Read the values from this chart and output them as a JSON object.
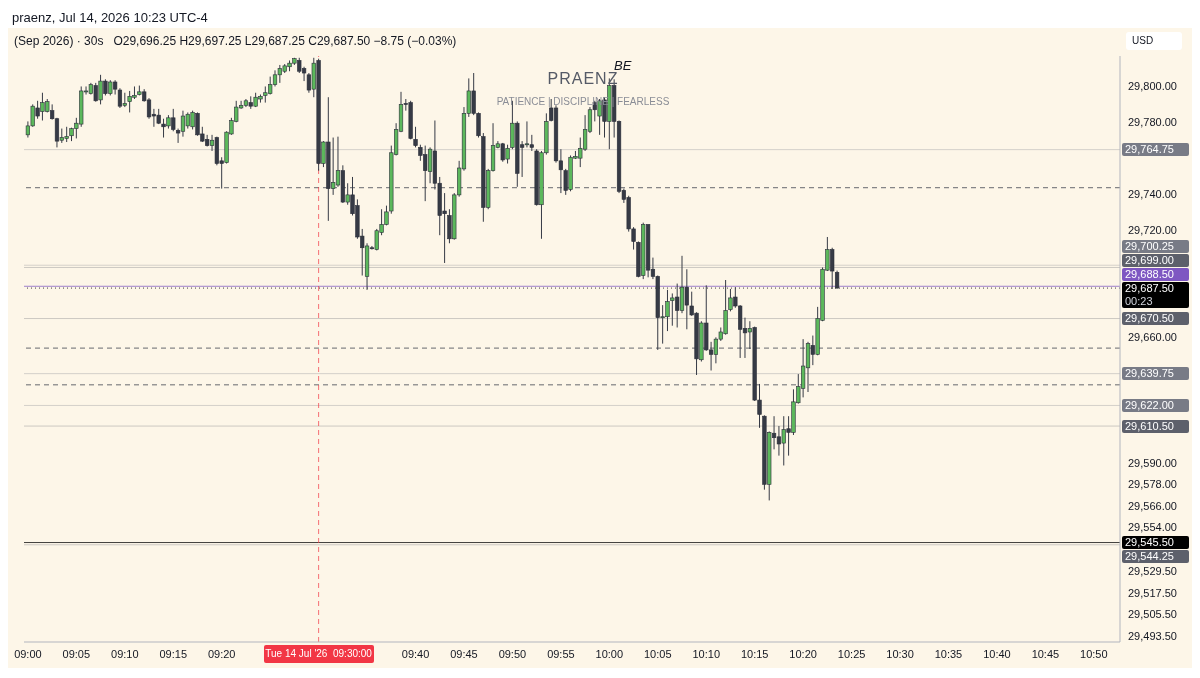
{
  "chart_data": {
    "type": "candlestick",
    "title": "praenz, Jul 14, 2026 10:23 UTC-4",
    "subtitle": "(Sep 2026) · 30s",
    "ylabel": "USD",
    "annotations": [
      "O29,696.25 H29,697.25 L29,687.25 C29,687.50 −8.75 (−0.03%)",
      "BE",
      "PRAENZ",
      "PATIENCE | DISCIPLINE | FEARLESS",
      "00:23"
    ],
    "x": [
      9.0,
      9.0083,
      9.0167,
      9.025,
      9.0333,
      9.0417,
      9.05,
      9.0583,
      9.0667,
      9.075,
      9.0833,
      9.0917,
      9.1,
      9.1083,
      9.1167,
      9.125,
      9.1333,
      9.1417,
      9.15,
      9.1583,
      9.1667,
      9.175,
      9.1833,
      9.1917,
      9.2,
      9.2083,
      9.2167,
      9.225,
      9.2333,
      9.2417,
      9.25,
      9.2583,
      9.2667,
      9.275,
      9.2833,
      9.2917,
      9.3,
      9.3083,
      9.3167,
      9.325,
      9.3333,
      9.3417,
      9.35,
      9.3583,
      9.3667,
      9.375,
      9.3833,
      9.3917,
      9.4,
      9.4083,
      9.4167,
      9.425,
      9.4333,
      9.4417,
      9.45,
      9.4583,
      9.4667,
      9.475,
      9.4833,
      9.4917,
      9.5,
      9.5083,
      9.5167,
      9.525,
      9.5333,
      9.5417,
      9.55,
      9.5583,
      9.5667,
      9.575,
      9.5833,
      9.5917,
      9.6,
      9.6083,
      9.6167,
      9.625,
      9.6333,
      9.6417,
      9.65,
      9.6583,
      9.6667,
      9.675,
      9.6833,
      9.6917,
      9.7,
      9.7083,
      9.7167,
      9.725,
      9.7333,
      9.7417,
      9.75,
      9.7583,
      9.7667,
      9.775,
      9.7833,
      9.7917,
      9.8,
      9.8083,
      9.8167,
      9.825,
      9.8333,
      9.8417,
      9.85,
      9.8583,
      9.8667,
      9.875,
      9.8833,
      9.8917,
      9.9,
      9.9083,
      9.9167,
      9.925,
      9.9333,
      9.9417,
      9.95,
      9.9583,
      9.9667,
      9.975,
      9.9833,
      9.9917,
      10.0,
      10.0083,
      10.0167,
      10.025,
      10.0333,
      10.0417,
      10.05,
      10.0583,
      10.0667,
      10.075,
      10.0833,
      10.0917,
      10.1,
      10.1083,
      10.1167,
      10.125,
      10.1333,
      10.1417,
      10.15,
      10.1583,
      10.1667,
      10.175,
      10.1833,
      10.1917,
      10.2,
      10.2083,
      10.2167,
      10.225,
      10.2333,
      10.2417,
      10.25,
      10.2583,
      10.2667,
      10.275,
      10.2833,
      10.2917,
      10.3,
      10.3083,
      10.3167,
      10.325,
      10.3333,
      10.3417,
      10.35,
      10.3583,
      10.3667,
      10.375,
      10.3833,
      10.3917
    ],
    "ohlc": [
      [
        29773,
        29780.5,
        29771.5,
        29778
      ],
      [
        29778,
        29790,
        29777.5,
        29789
      ],
      [
        29788,
        29792,
        29782,
        29783.5
      ],
      [
        29786,
        29796.5,
        29781,
        29791
      ],
      [
        29786,
        29793,
        29785.5,
        29791.5
      ],
      [
        29786.5,
        29790,
        29781.5,
        29782
      ],
      [
        29782,
        29782.5,
        29766,
        29769.5
      ],
      [
        29770,
        29776.5,
        29768.5,
        29771.5
      ],
      [
        29771,
        29777.5,
        29769,
        29772
      ],
      [
        29772.5,
        29777,
        29769.5,
        29776.5
      ],
      [
        29776.5,
        29782.5,
        29771,
        29779.5
      ],
      [
        29779,
        29800,
        29777.5,
        29797.5
      ],
      [
        29797,
        29800,
        29795.5,
        29797.5
      ],
      [
        29796,
        29802,
        29795.5,
        29801
      ],
      [
        29800.5,
        29802,
        29791.5,
        29792
      ],
      [
        29792.5,
        29806.5,
        29790,
        29803
      ],
      [
        29803,
        29804,
        29795,
        29796
      ],
      [
        29796,
        29803.5,
        29795,
        29802.5
      ],
      [
        29802.5,
        29803.5,
        29795.5,
        29798.5
      ],
      [
        29798,
        29799,
        29788,
        29789
      ],
      [
        29789.5,
        29796.5,
        29788.5,
        29790.5
      ],
      [
        29791.5,
        29797.5,
        29785.5,
        29794.5
      ],
      [
        29794,
        29800,
        29793,
        29795
      ],
      [
        29795.5,
        29800.5,
        29795,
        29797
      ],
      [
        29797,
        29798.5,
        29791.5,
        29792
      ],
      [
        29792.5,
        29793.5,
        29782,
        29783
      ],
      [
        29784.5,
        29787.5,
        29777.5,
        29783.5
      ],
      [
        29784,
        29787.5,
        29779,
        29779.5
      ],
      [
        29779,
        29782,
        29771.5,
        29777.5
      ],
      [
        29778,
        29784,
        29776.5,
        29782.5
      ],
      [
        29782.5,
        29787.5,
        29775,
        29776
      ],
      [
        29775.5,
        29776.5,
        29768.5,
        29774
      ],
      [
        29775,
        29786.5,
        29772,
        29783.5
      ],
      [
        29778,
        29785.5,
        29776.5,
        29784.5
      ],
      [
        29777.5,
        29786.5,
        29776,
        29785.5
      ],
      [
        29785,
        29785.5,
        29772.5,
        29773
      ],
      [
        29773.5,
        29777.5,
        29769,
        29769.5
      ],
      [
        29770.5,
        29773,
        29766.5,
        29767
      ],
      [
        29767,
        29773,
        29764,
        29770
      ],
      [
        29771.5,
        29772,
        29756,
        29757
      ],
      [
        29758.5,
        29760.5,
        29743,
        29757
      ],
      [
        29757.5,
        29775,
        29757,
        29774.5
      ],
      [
        29773.5,
        29782.5,
        29773,
        29781
      ],
      [
        29780.5,
        29792,
        29780,
        29788.5
      ],
      [
        29788,
        29792,
        29787.5,
        29789.5
      ],
      [
        29789.5,
        29793,
        29788.5,
        29792
      ],
      [
        29791,
        29794.5,
        29787.5,
        29789
      ],
      [
        29789,
        29796.5,
        29788.5,
        29794
      ],
      [
        29793,
        29795.5,
        29791,
        29794.5
      ],
      [
        29795,
        29800,
        29791,
        29796.5
      ],
      [
        29796,
        29805.5,
        29795.5,
        29801
      ],
      [
        29801,
        29809,
        29800,
        29806.5
      ],
      [
        29806.5,
        29812,
        29802,
        29810
      ],
      [
        29808.5,
        29812.5,
        29807.5,
        29811.5
      ],
      [
        29811,
        29814.5,
        29808.5,
        29813
      ],
      [
        29813,
        29816,
        29812,
        29815.5
      ],
      [
        29814.5,
        29816,
        29807.5,
        29808.5
      ],
      [
        29810,
        29811,
        29803,
        29807.5
      ],
      [
        29806.5,
        29807.5,
        29796.5,
        29798
      ],
      [
        29798.5,
        29816,
        29794,
        29813
      ],
      [
        29814.5,
        29815.5,
        29753,
        29757
      ],
      [
        29757,
        29769.5,
        29755,
        29769
      ],
      [
        29769,
        29794,
        29725,
        29743
      ],
      [
        29743,
        29771.5,
        29739.5,
        29746.5
      ],
      [
        29745,
        29772,
        29744,
        29753
      ],
      [
        29753,
        29756,
        29735,
        29735.5
      ],
      [
        29735.5,
        29746,
        29734,
        29739.5
      ],
      [
        29739.5,
        29749.5,
        29728,
        29729
      ],
      [
        29733.5,
        29737,
        29715,
        29716
      ],
      [
        29716.5,
        29720.5,
        29694.5,
        29710
      ],
      [
        29694,
        29712.5,
        29686.5,
        29711
      ],
      [
        29710,
        29711,
        29709,
        29709.5
      ],
      [
        29709,
        29720.5,
        29708.5,
        29719.5
      ],
      [
        29718.5,
        29731.5,
        29717,
        29723
      ],
      [
        29723,
        29733.5,
        29722.5,
        29730
      ],
      [
        29730.5,
        29767,
        29729,
        29763
      ],
      [
        29762,
        29779.5,
        29761.5,
        29776
      ],
      [
        29775,
        29797,
        29774.5,
        29790
      ],
      [
        29790.5,
        29793,
        29786.5,
        29790
      ],
      [
        29791,
        29792,
        29770.5,
        29771
      ],
      [
        29770.5,
        29777.5,
        29766,
        29767
      ],
      [
        29766,
        29767.5,
        29758.5,
        29761.5
      ],
      [
        29762,
        29767,
        29736,
        29753
      ],
      [
        29752.5,
        29766,
        29746,
        29765
      ],
      [
        29764,
        29781,
        29742.5,
        29746
      ],
      [
        29746,
        29749.5,
        29717,
        29728
      ],
      [
        29730.5,
        29740.5,
        29701.5,
        29729
      ],
      [
        29728,
        29731.5,
        29712.5,
        29715
      ],
      [
        29715,
        29740.5,
        29714.5,
        29739.5
      ],
      [
        29739.5,
        29758.5,
        29738.5,
        29754.5
      ],
      [
        29754,
        29788.5,
        29753,
        29785
      ],
      [
        29785,
        29804.5,
        29783,
        29797.5
      ],
      [
        29797.5,
        29807.5,
        29784,
        29785
      ],
      [
        29785,
        29785.5,
        29771.5,
        29772.5
      ],
      [
        29772,
        29774,
        29724.5,
        29732.5
      ],
      [
        29732.5,
        29754,
        29731.5,
        29753
      ],
      [
        29753,
        29779.5,
        29752.5,
        29767
      ],
      [
        29766,
        29769.5,
        29765.5,
        29768
      ],
      [
        29768,
        29768.5,
        29758,
        29759
      ],
      [
        29759.5,
        29767.5,
        29757,
        29765.5
      ],
      [
        29766,
        29792,
        29765,
        29779.5
      ],
      [
        29779.5,
        29780.5,
        29744,
        29751.5
      ],
      [
        29767.5,
        29769.5,
        29749.5,
        29766
      ],
      [
        29767.5,
        29780.5,
        29766,
        29768
      ],
      [
        29767.5,
        29773,
        29764,
        29766
      ],
      [
        29764,
        29765,
        29733.5,
        29734
      ],
      [
        29734,
        29764,
        29715,
        29763
      ],
      [
        29763,
        29785,
        29762,
        29780.5
      ],
      [
        29788,
        29793,
        29780.5,
        29781
      ],
      [
        29788,
        29789.5,
        29757.5,
        29758.5
      ],
      [
        29758.5,
        29765,
        29740.5,
        29753.5
      ],
      [
        29753,
        29754,
        29739.5,
        29742
      ],
      [
        29742.5,
        29761.5,
        29741.5,
        29760.5
      ],
      [
        29760,
        29764,
        29759.5,
        29761
      ],
      [
        29760,
        29771.5,
        29755,
        29765.5
      ],
      [
        29765,
        29784,
        29764,
        29776
      ],
      [
        29775,
        29788.5,
        29774,
        29787
      ],
      [
        29791,
        29792,
        29780.5,
        29787
      ],
      [
        29783.5,
        29793,
        29773,
        29792
      ],
      [
        29792.5,
        29794,
        29771.5,
        29780.5
      ],
      [
        29780.5,
        29804.5,
        29765,
        29800.5
      ],
      [
        29800.5,
        29804,
        29771.5,
        29780.5
      ],
      [
        29780.5,
        29781,
        29740.5,
        29741.5
      ],
      [
        29742,
        29743,
        29735,
        29737
      ],
      [
        29738,
        29739,
        29719,
        29720.5
      ],
      [
        29720.5,
        29721.5,
        29709,
        29713.5
      ],
      [
        29713,
        29713.5,
        29693.5,
        29694
      ],
      [
        29694.5,
        29724,
        29692.5,
        29723
      ],
      [
        29723,
        29723,
        29693.5,
        29697.5
      ],
      [
        29698,
        29704.5,
        29692.5,
        29694
      ],
      [
        29694,
        29694.5,
        29653,
        29671
      ],
      [
        29671,
        29678,
        29656.5,
        29671.5
      ],
      [
        29671.5,
        29686.5,
        29663.5,
        29680
      ],
      [
        29680.5,
        29684.5,
        29666.5,
        29682
      ],
      [
        29682.5,
        29690,
        29665.5,
        29675
      ],
      [
        29675,
        29705.5,
        29673.5,
        29688
      ],
      [
        29688,
        29698,
        29664.5,
        29678
      ],
      [
        29677.5,
        29685.5,
        29672,
        29672.5
      ],
      [
        29673.5,
        29674,
        29639,
        29648
      ],
      [
        29647.5,
        29669,
        29646.5,
        29668
      ],
      [
        29668,
        29689,
        29652.5,
        29653
      ],
      [
        29653,
        29657.5,
        29641.5,
        29650.5
      ],
      [
        29650.5,
        29660,
        29645.5,
        29659
      ],
      [
        29659,
        29665.5,
        29658,
        29663
      ],
      [
        29662,
        29692,
        29661.5,
        29675
      ],
      [
        29675.5,
        29687,
        29674.5,
        29682
      ],
      [
        29682.5,
        29688,
        29676.5,
        29677.5
      ],
      [
        29677.5,
        29678,
        29648.5,
        29664.5
      ],
      [
        29665,
        29671,
        29648.5,
        29662.5
      ],
      [
        29663,
        29669,
        29653.5,
        29665
      ],
      [
        29665.5,
        29666,
        29624.5,
        29625
      ],
      [
        29625,
        29634,
        29609.5,
        29617
      ],
      [
        29616,
        29616.5,
        29575,
        29578
      ],
      [
        29578,
        29607.5,
        29569,
        29607
      ],
      [
        29606.5,
        29616,
        29597.5,
        29604
      ],
      [
        29604.5,
        29610.5,
        29594,
        29600.5
      ],
      [
        29601,
        29616,
        29588.5,
        29608.5
      ],
      [
        29609,
        29616,
        29594,
        29607
      ],
      [
        29607,
        29631,
        29605.5,
        29624
      ],
      [
        29623.5,
        29639.5,
        29623,
        29632.5
      ],
      [
        29631.5,
        29659,
        29626.5,
        29644
      ],
      [
        29643,
        29657.5,
        29629.5,
        29656.5
      ],
      [
        29655.5,
        29661,
        29644.5,
        29650.5
      ],
      [
        29650.5,
        29677,
        29650,
        29670.5
      ],
      [
        29669.5,
        29699,
        29669,
        29698
      ],
      [
        29697.5,
        29716,
        29697,
        29709
      ],
      [
        29709,
        29710,
        29687,
        29697
      ],
      [
        29696.25,
        29697.25,
        29687.25,
        29687.5
      ]
    ],
    "xlim": [
      8.9933,
      10.8783
    ],
    "xticks": [
      {
        "value": 9.0,
        "label": "09:00"
      },
      {
        "value": 9.0833,
        "label": "09:05"
      },
      {
        "value": 9.1667,
        "label": "09:10"
      },
      {
        "value": 9.25,
        "label": "09:15"
      },
      {
        "value": 9.3333,
        "label": "09:20"
      },
      {
        "value": 9.6667,
        "label": "09:40"
      },
      {
        "value": 9.75,
        "label": "09:45"
      },
      {
        "value": 9.8333,
        "label": "09:50"
      },
      {
        "value": 9.9167,
        "label": "09:55"
      },
      {
        "value": 10.0,
        "label": "10:00"
      },
      {
        "value": 10.0833,
        "label": "10:05"
      },
      {
        "value": 10.1667,
        "label": "10:10"
      },
      {
        "value": 10.25,
        "label": "10:15"
      },
      {
        "value": 10.3333,
        "label": "10:20"
      },
      {
        "value": 10.4167,
        "label": "10:25"
      },
      {
        "value": 10.5,
        "label": "10:30"
      },
      {
        "value": 10.5833,
        "label": "10:35"
      },
      {
        "value": 10.6667,
        "label": "10:40"
      },
      {
        "value": 10.75,
        "label": "10:45"
      },
      {
        "value": 10.8333,
        "label": "10:50"
      }
    ],
    "ylim": [
      29490,
      29817
    ],
    "yticks": [
      {
        "value": 29800,
        "label": "29,800.00"
      },
      {
        "value": 29780,
        "label": "29,780.00"
      },
      {
        "value": 29740,
        "label": "29,740.00"
      },
      {
        "value": 29720,
        "label": "29,720.00"
      },
      {
        "value": 29660,
        "label": "29,660.00"
      },
      {
        "value": 29590,
        "label": "29,590.00"
      },
      {
        "value": 29578,
        "label": "29,578.00"
      },
      {
        "value": 29566,
        "label": "29,566.00"
      },
      {
        "value": 29554,
        "label": "29,554.00"
      },
      {
        "value": 29529.5,
        "label": "29,529.50"
      },
      {
        "value": 29517.5,
        "label": "29,517.50"
      },
      {
        "value": 29505.5,
        "label": "29,505.50"
      },
      {
        "value": 29493.5,
        "label": "29,493.50"
      }
    ],
    "ref_lines": [
      {
        "axis": "y",
        "value": 29764.75,
        "label": "29,764.75",
        "color": "#787b86"
      },
      {
        "axis": "y",
        "value": 29743.5,
        "color": "#363a45",
        "line_style": "dashed"
      },
      {
        "axis": "y",
        "value": 29700.25,
        "label": "29,700.25",
        "color": "#787b86"
      },
      {
        "axis": "y",
        "value": 29699,
        "label": "29,699.00",
        "color": "#5d606b"
      },
      {
        "axis": "y",
        "value": 29688.5,
        "label": "29,688.50",
        "color": "#7e57c2",
        "line_style": "solid"
      },
      {
        "axis": "y",
        "value": 29687.5,
        "label": "29,687.50",
        "color": "#000000",
        "line_style": "dotted"
      },
      {
        "axis": "y",
        "value": 29670.5,
        "label": "29,670.50",
        "color": "#5d606b"
      },
      {
        "axis": "y",
        "value": 29654,
        "color": "#363a45",
        "line_style": "dashed"
      },
      {
        "axis": "y",
        "value": 29639.75,
        "label": "29,639.75",
        "color": "#787b86"
      },
      {
        "axis": "y",
        "value": 29633.5,
        "color": "#363a45",
        "line_style": "dashed"
      },
      {
        "axis": "y",
        "value": 29622,
        "label": "29,622.00",
        "color": "#787b86"
      },
      {
        "axis": "y",
        "value": 29610.5,
        "label": "29,610.50",
        "color": "#5d606b"
      },
      {
        "axis": "y",
        "value": 29545.5,
        "label": "29,545.50",
        "color": "#000000",
        "line_style": "solid"
      },
      {
        "axis": "y",
        "value": 29544.25,
        "label": "29,544.25",
        "color": "#5d606b"
      },
      {
        "axis": "x",
        "value": 9.5,
        "label": "Tue 14 Jul '26  09:30:00",
        "color": "#f23645",
        "line_style": "dashed"
      }
    ]
  }
}
